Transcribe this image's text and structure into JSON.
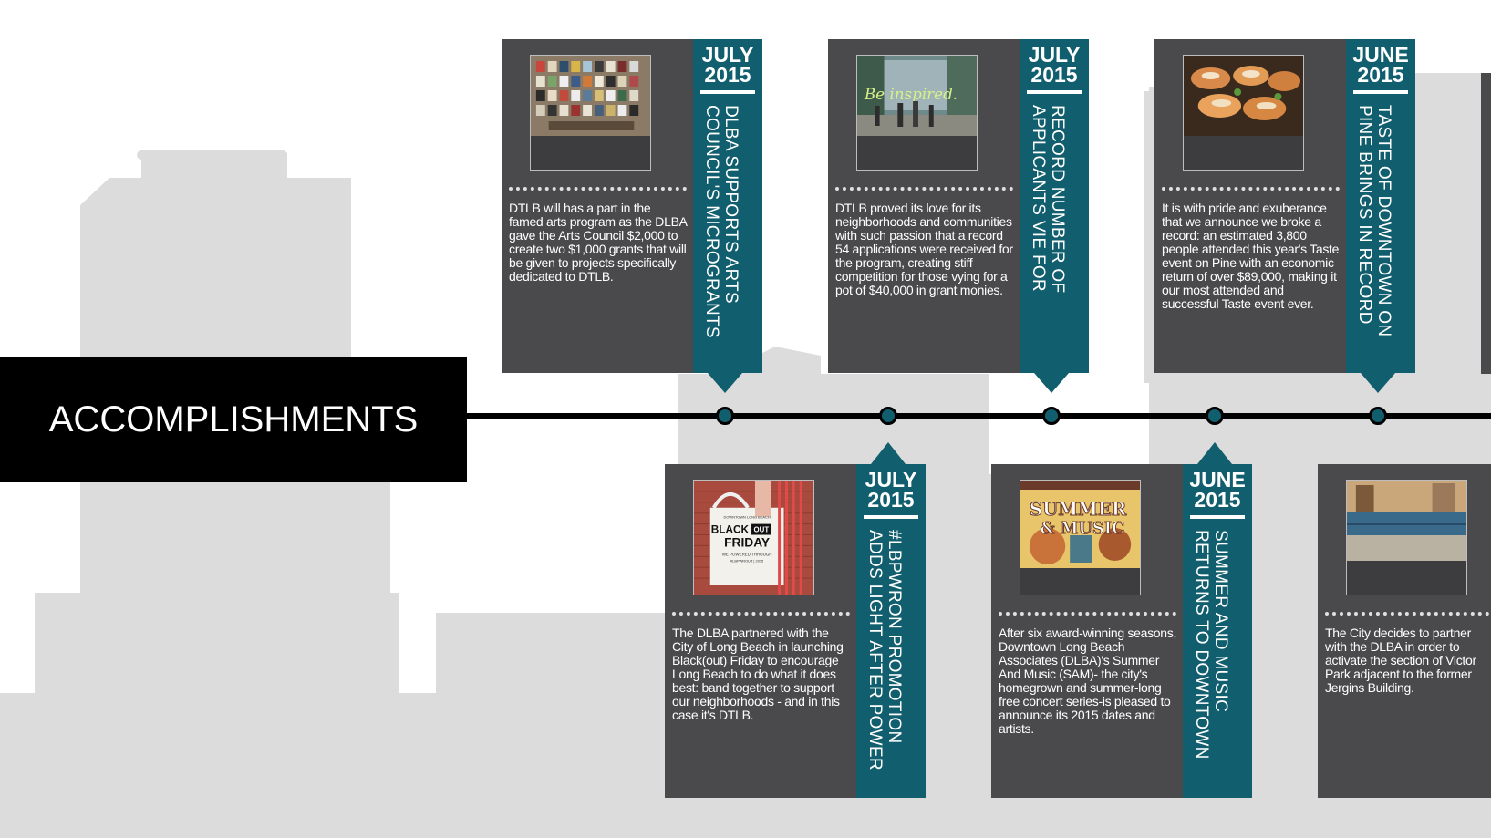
{
  "section": {
    "title": "ACCOMPLISHMENTS"
  },
  "events": [
    {
      "month": "JULY",
      "year": "2015",
      "title": "DLBA SUPPORTS ARTS COUNCIL'S MICROGRANTS",
      "description": "DTLB will has a part in the famed arts program as the DLBA gave the Arts Council $2,000 to create two $1,000 grants that will be given to projects specifically dedicated to DTLB."
    },
    {
      "month": "JULY",
      "year": "2015",
      "title": "#LBPWRON PROMOTION ADDS LIGHT AFTER POWER",
      "description": "The DLBA partnered with the City of Long Beach in launching Black(out) Friday to encourage Long Beach to do what it does best: band together to support our neighborhoods - and in this case it's DTLB.",
      "image_text": {
        "line1": "DOWNTOWN LONG BEACH",
        "line2": "BLACK",
        "line2b": "OUT",
        "line3": "FRIDAY",
        "line4": "WE POWERED THROUGH",
        "line5": "#LBPWROUT | 2015"
      }
    },
    {
      "month": "JULY",
      "year": "2015",
      "title": "RECORD NUMBER OF APPLICANTS VIE FOR",
      "description": "DTLB proved its love for its neighborhoods and communities with such passion that a record 54 applications were received for the program, creating stiff competition for those vying for a pot of $40,000 in grant monies.",
      "image_text": {
        "line1": "Be inspired."
      }
    },
    {
      "month": "JUNE",
      "year": "2015",
      "title": "SUMMER AND MUSIC RETURNS TO DOWNTOWN",
      "description": "After six award-winning seasons, Downtown Long Beach Associates (DLBA)'s Summer And Music (SAM)- the city's homegrown and summer-long free concert series-is pleased to announce its 2015 dates and artists.",
      "image_text": {
        "line1": "SUMMER",
        "line2": "& MUSIC"
      }
    },
    {
      "month": "JUNE",
      "year": "2015",
      "title": "TASTE OF DOWNTOWN ON PINE BRINGS IN RECORD",
      "description": "It is with pride and exuberance that we announce we broke a record: an estimated 3,800 people attended this year's Taste event on Pine with an economic return of over $89,000, making it our most attended and successful Taste event ever."
    },
    {
      "description": "The City decides to partner with the DLBA in order to activate the section of Victor Park adjacent to the former Jergins Building."
    }
  ],
  "colors": {
    "teal": "#115e6e",
    "card": "#4a4a4c",
    "skyline": "#dcdcdc"
  }
}
